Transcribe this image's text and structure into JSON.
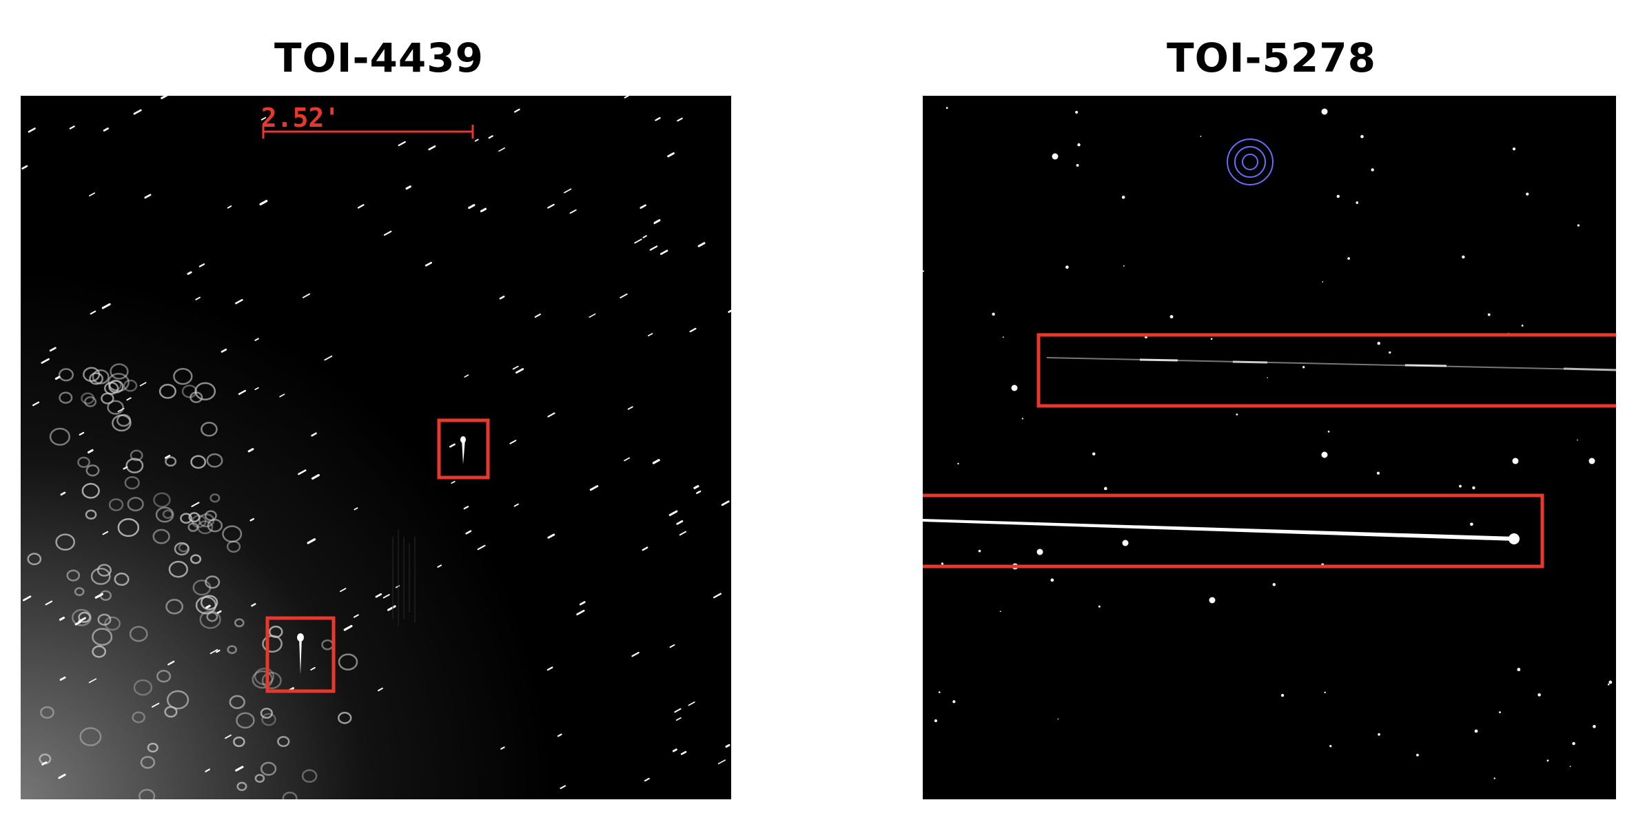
{
  "panels": [
    {
      "title": "TOI-4439",
      "scale_bar_label": "2.52'"
    },
    {
      "title": "TOI-5278"
    }
  ],
  "colors": {
    "highlight_box": "#e8382b",
    "scale_bar": "#e8382b",
    "target_marker": "#6b6bff",
    "background": "#000000"
  }
}
